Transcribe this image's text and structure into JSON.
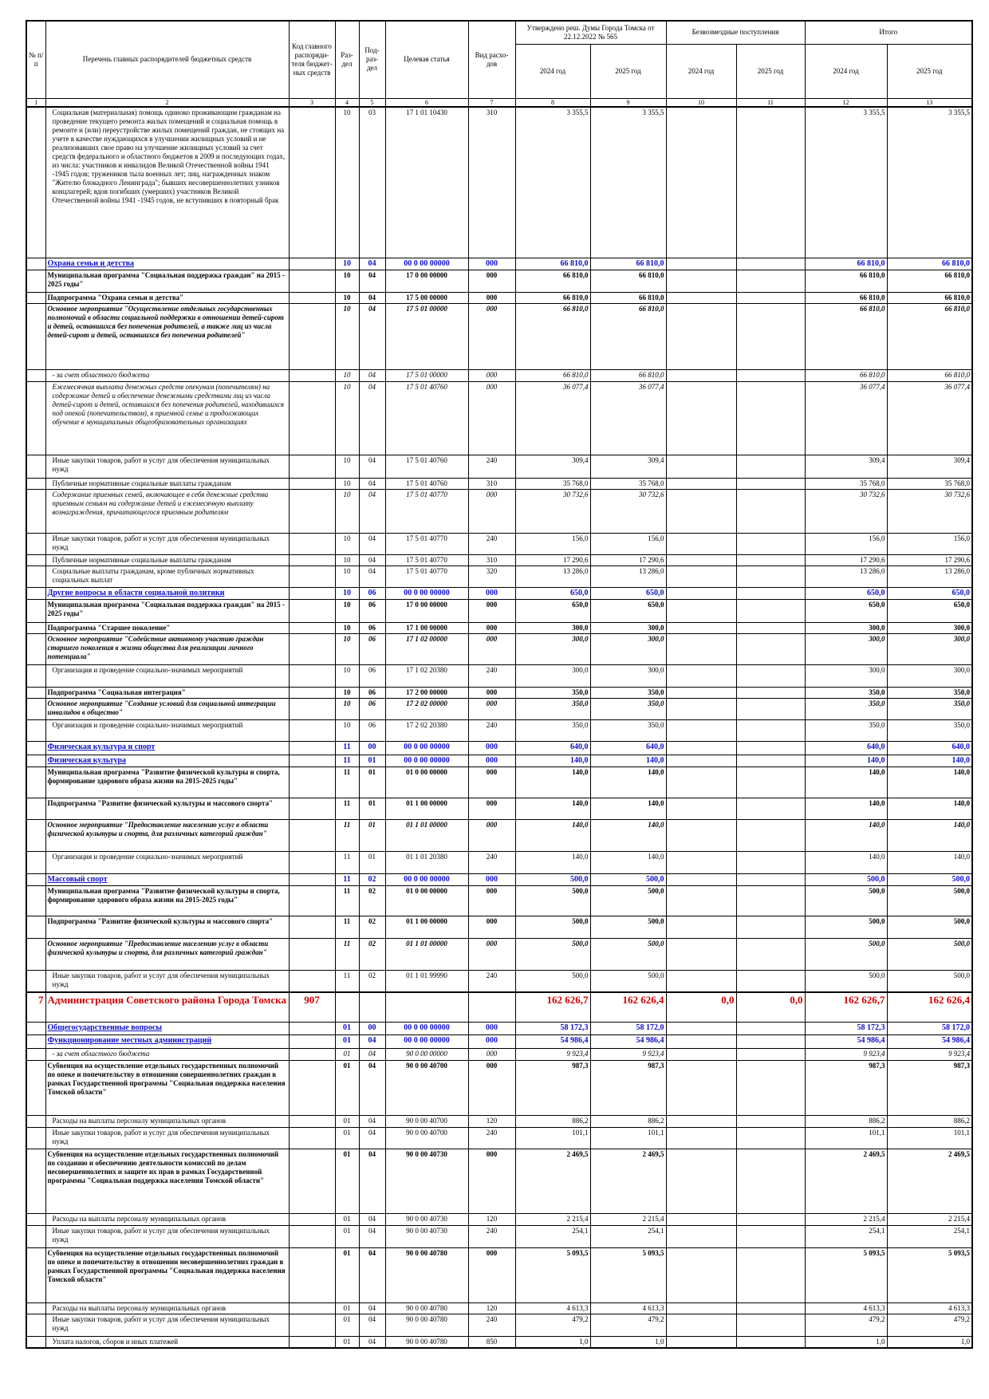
{
  "header": {
    "columns": [
      "№ п/п",
      "Перечень главных распорядителей бюджетных средств",
      "Код главного распоряди-теля бюджет-ных средств",
      "Раз-дел",
      "Под-раз-дел",
      "Целевая статья",
      "Вид расхо-дов"
    ],
    "groups": [
      "Утверждено реш. Думы Города Томска от 22.12.2022 № 565",
      "Безвозмездные поступления",
      "Итого"
    ],
    "years": [
      "2024 год",
      "2025 год",
      "2024 год",
      "2025 год",
      "2024 год",
      "2025 год"
    ],
    "column_numbers": [
      "1",
      "2",
      "3",
      "4",
      "5",
      "6",
      "7",
      "8",
      "9",
      "10",
      "11",
      "12",
      "13"
    ]
  },
  "table": {
    "rows": [
      [
        null,
        "Социальная (материальная) помощь одиноко проживающим гражданам на проведение текущего ремонта жилых помещений и социальная помощь в ремонте и (или) переустройстве жилых помещений граждан, не стоящих на учете в качестве нуждающихся в улучшении жилищных условий и не реализовавших свое право на улучшение жилищных условий за счет средств федерального и областного бюджетов в 2009 и последующих годах, из числа: участников и инвалидов Великой Отечественной войны 1941 -1945 годов; тружеников тыла военных лет; лиц, награжденных знаком \"Жителю блокадного Ленинграда\"; бывших несовершеннолетних узников концлагерей; вдов погибших (умерших) участников Великой Отечественной войны 1941 -1945 годов, не вступивших в повторный брак",
        null,
        "10",
        "03",
        "17 1 01 10430",
        "310",
        "3 355,5",
        "3 355,5",
        null,
        null,
        "3 355,5",
        "3 355,5"
      ],
      [
        null,
        "Охрана семьи и детства",
        null,
        "10",
        "04",
        "00 0 00 00000",
        "000",
        "66 810,0",
        "66 810,0",
        null,
        null,
        "66 810,0",
        "66 810,0"
      ],
      [
        null,
        "Муниципальная программа \"Социальная поддержка граждан\" на 2015 - 2025 годы\"",
        null,
        "10",
        "04",
        "17 0 00 00000",
        "000",
        "66 810,0",
        "66 810,0",
        null,
        null,
        "66 810,0",
        "66 810,0"
      ],
      [
        null,
        "Подпрограмма \"Охрана семьи и детства\"",
        null,
        "10",
        "04",
        "17 5 00 00000",
        "000",
        "66 810,0",
        "66 810,0",
        null,
        null,
        "66 810,0",
        "66 810,0"
      ],
      [
        null,
        "Основное мероприятие \"Осуществление отдельных государственных полномочий в области социальной поддержки в отношении детей-сирот и детей, оставшихся без попечения родителей, а также лиц из числа детей-сирот и детей, оставшихся без попечения родителей\"",
        null,
        "10",
        "04",
        "17 5 01 00000",
        "000",
        "66 810,0",
        "66 810,0",
        null,
        null,
        "66 810,0",
        "66 810,0"
      ],
      [
        null,
        "- за счет областного бюджета",
        null,
        "10",
        "04",
        "17 5 01 00000",
        "000",
        "66 810,0",
        "66 810,0",
        null,
        null,
        "66 810,0",
        "66 810,0"
      ],
      [
        null,
        "Ежемесячная выплата денежных средств опекунам (попечителям) на содержание детей и обеспечение денежными средствами лиц из числа детей-сирот и детей, оставшихся без попечения родителей, находившихся под опекой (попечительством), в приемной семье и продолжающих обучение в муниципальных общеобразовательных организациях",
        null,
        "10",
        "04",
        "17 5 01 40760",
        "000",
        "36 077,4",
        "36 077,4",
        null,
        null,
        "36 077,4",
        "36 077,4"
      ],
      [
        null,
        "Иные закупки товаров, работ и услуг для обеспечения муниципальных нужд",
        null,
        "10",
        "04",
        "17 5 01 40760",
        "240",
        "309,4",
        "309,4",
        null,
        null,
        "309,4",
        "309,4"
      ],
      [
        null,
        "Публичные нормативные социальные выплаты гражданам",
        null,
        "10",
        "04",
        "17 5 01 40760",
        "310",
        "35 768,0",
        "35 768,0",
        null,
        null,
        "35 768,0",
        "35 768,0"
      ],
      [
        null,
        "Содержание приемных семей, включающее в себя денежные средства приемным семьям на содержание детей и ежемесячную выплату вознаграждения, причитающегося приемным родителям",
        null,
        "10",
        "04",
        "17 5 01 40770",
        "000",
        "30 732,6",
        "30 732,6",
        null,
        null,
        "30 732,6",
        "30 732,6"
      ],
      [
        null,
        "Иные закупки товаров, работ и услуг для обеспечения муниципальных нужд",
        null,
        "10",
        "04",
        "17 5 01 40770",
        "240",
        "156,0",
        "156,0",
        null,
        null,
        "156,0",
        "156,0"
      ],
      [
        null,
        "Публичные нормативные социальные выплаты гражданам",
        null,
        "10",
        "04",
        "17 5 01 40770",
        "310",
        "17 290,6",
        "17 290,6",
        null,
        null,
        "17 290,6",
        "17 290,6"
      ],
      [
        null,
        "Социальные выплаты гражданам, кроме публичных нормативных социальных выплат",
        null,
        "10",
        "04",
        "17 5 01 40770",
        "320",
        "13 286,0",
        "13 286,0",
        null,
        null,
        "13 286,0",
        "13 286,0"
      ],
      [
        null,
        "Другие вопросы в области социальной политики",
        null,
        "10",
        "06",
        "00 0 00 00000",
        "000",
        "650,0",
        "650,0",
        null,
        null,
        "650,0",
        "650,0"
      ],
      [
        null,
        "Муниципальная программа \"Социальная поддержка граждан\" на 2015 - 2025 годы\"",
        null,
        "10",
        "06",
        "17 0 00 00000",
        "000",
        "650,0",
        "650,0",
        null,
        null,
        "650,0",
        "650,0"
      ],
      [
        null,
        "Подпрограмма \"Старшее поколение\"",
        null,
        "10",
        "06",
        "17 1 00 00000",
        "000",
        "300,0",
        "300,0",
        null,
        null,
        "300,0",
        "300,0"
      ],
      [
        null,
        "Основное мероприятие \"Содействие активному участию граждан старшего поколения в жизни общества для реализации личного потенциала\"",
        null,
        "10",
        "06",
        "17 1 02 00000",
        "000",
        "300,0",
        "300,0",
        null,
        null,
        "300,0",
        "300,0"
      ],
      [
        null,
        "Организация и проведение социально-значимых мероприятий",
        null,
        "10",
        "06",
        "17 1 02 20380",
        "240",
        "300,0",
        "300,0",
        null,
        null,
        "300,0",
        "300,0"
      ],
      [
        null,
        "Подпрограмма \"Социальная интеграция\"",
        null,
        "10",
        "06",
        "17 2 00 00000",
        "000",
        "350,0",
        "350,0",
        null,
        null,
        "350,0",
        "350,0"
      ],
      [
        null,
        "Основное мероприятие \"Создание условий для социальной интеграции инвалидов в общество\"",
        null,
        "10",
        "06",
        "17 2 02 00000",
        "000",
        "350,0",
        "350,0",
        null,
        null,
        "350,0",
        "350,0"
      ],
      [
        null,
        "Организация и проведение социально-значимых мероприятий",
        null,
        "10",
        "06",
        "17 2 02 20380",
        "240",
        "350,0",
        "350,0",
        null,
        null,
        "350,0",
        "350,0"
      ],
      [
        null,
        "Физическая культура и спорт",
        null,
        "11",
        "00",
        "00 0 00 00000",
        "000",
        "640,0",
        "640,0",
        null,
        null,
        "640,0",
        "640,0"
      ],
      [
        null,
        "Физическая культура",
        null,
        "11",
        "01",
        "00 0 00 00000",
        "000",
        "140,0",
        "140,0",
        null,
        null,
        "140,0",
        "140,0"
      ],
      [
        null,
        "Муниципальная программа \"Развитие физической культуры и спорта, формирование здорового образа жизни на 2015-2025 годы\"",
        null,
        "11",
        "01",
        "01 0 00 00000",
        "000",
        "140,0",
        "140,0",
        null,
        null,
        "140,0",
        "140,0"
      ],
      [
        null,
        "Подпрограмма \"Развитие физической культуры и массового спорта\"",
        null,
        "11",
        "01",
        "01 1 00 00000",
        "000",
        "140,0",
        "140,0",
        null,
        null,
        "140,0",
        "140,0"
      ],
      [
        null,
        "Основное мероприятие \"Предоставление населению услуг в области физической культуры и спорта, для различных категорий граждан\"",
        null,
        "11",
        "01",
        "01 1 01 00000",
        "000",
        "140,0",
        "140,0",
        null,
        null,
        "140,0",
        "140,0"
      ],
      [
        null,
        "Организация и проведение социально-значимых мероприятий",
        null,
        "11",
        "01",
        "01 1 01 20380",
        "240",
        "140,0",
        "140,0",
        null,
        null,
        "140,0",
        "140,0"
      ],
      [
        null,
        "Массовый спорт",
        null,
        "11",
        "02",
        "00 0 00 00000",
        "000",
        "500,0",
        "500,0",
        null,
        null,
        "500,0",
        "500,0"
      ],
      [
        null,
        "Муниципальная программа \"Развитие физической культуры и спорта, формирование здорового образа жизни на 2015-2025 годы\"",
        null,
        "11",
        "02",
        "01 0 00 00000",
        "000",
        "500,0",
        "500,0",
        null,
        null,
        "500,0",
        "500,0"
      ],
      [
        null,
        "Подпрограмма \"Развитие физической культуры и массового спорта\"",
        null,
        "11",
        "02",
        "01 1 00 00000",
        "000",
        "500,0",
        "500,0",
        null,
        null,
        "500,0",
        "500,0"
      ],
      [
        null,
        "Основное мероприятие \"Предоставление населению услуг в области физической культуры и спорта, для различных категорий граждан\"",
        null,
        "11",
        "02",
        "01 1 01 00000",
        "000",
        "500,0",
        "500,0",
        null,
        null,
        "500,0",
        "500,0"
      ],
      [
        null,
        "Иные закупки товаров, работ и услуг для обеспечения муниципальных нужд",
        null,
        "11",
        "02",
        "01 1 01 99990",
        "240",
        "500,0",
        "500,0",
        null,
        null,
        "500,0",
        "500,0"
      ],
      [
        "7",
        "Администрация Советского района Города Томска",
        "907",
        null,
        null,
        null,
        null,
        "162 626,7",
        "162 626,4",
        "0,0",
        "0,0",
        "162 626,7",
        "162 626,4"
      ],
      [
        null,
        "Общегосударственные вопросы",
        null,
        "01",
        "00",
        "00 0 00 00000",
        "000",
        "58 172,3",
        "58 172,0",
        null,
        null,
        "58 172,3",
        "58 172,0"
      ],
      [
        null,
        "Функционирование местных администраций",
        null,
        "01",
        "04",
        "00 0 00 00000",
        "000",
        "54 986,4",
        "54 986,4",
        null,
        null,
        "54 986,4",
        "54 986,4"
      ],
      [
        null,
        "- за счет областного бюджета",
        null,
        "01",
        "04",
        "90 0 00 00000",
        "000",
        "9 923,4",
        "9 923,4",
        null,
        null,
        "9 923,4",
        "9 923,4"
      ],
      [
        null,
        "Субвенция на осуществление отдельных государственных полномочий по опеке и попечительству в отношении совершеннолетних граждан в рамках Государственной программы \"Социальная поддержка населения Томской области\"",
        null,
        "01",
        "04",
        "90 0 00 40700",
        "000",
        "987,3",
        "987,3",
        null,
        null,
        "987,3",
        "987,3"
      ],
      [
        null,
        "Расходы на выплаты персоналу муниципальных органов",
        null,
        "01",
        "04",
        "90 0 00 40700",
        "120",
        "886,2",
        "886,2",
        null,
        null,
        "886,2",
        "886,2"
      ],
      [
        null,
        "Иные закупки товаров, работ и услуг для обеспечения муниципальных нужд",
        null,
        "01",
        "04",
        "90 0 00 40700",
        "240",
        "101,1",
        "101,1",
        null,
        null,
        "101,1",
        "101,1"
      ],
      [
        null,
        "Субвенция на осуществление отдельных государственных полномочий по созданию и обеспечению деятельности комиссий по делам несовершеннолетних и защите их прав в рамках Государственной программы \"Социальная поддержка населения Томской области\"",
        null,
        "01",
        "04",
        "90 0 00 40730",
        "000",
        "2 469,5",
        "2 469,5",
        null,
        null,
        "2 469,5",
        "2 469,5"
      ],
      [
        null,
        "Расходы на выплаты персоналу муниципальных органов",
        null,
        "01",
        "04",
        "90 0 00 40730",
        "120",
        "2 215,4",
        "2 215,4",
        null,
        null,
        "2 215,4",
        "2 215,4"
      ],
      [
        null,
        "Иные закупки товаров, работ и услуг для обеспечения муниципальных нужд",
        null,
        "01",
        "04",
        "90 0 00 40730",
        "240",
        "254,1",
        "254,1",
        null,
        null,
        "254,1",
        "254,1"
      ],
      [
        null,
        "Субвенция на осуществление отдельных государственных полномочий по опеке и попечительству в отношении несовершеннолетних граждан в рамках Государственной программы \"Социальная поддержка населения Томской области\"",
        null,
        "01",
        "04",
        "90 0 00 40780",
        "000",
        "5 093,5",
        "5 093,5",
        null,
        null,
        "5 093,5",
        "5 093,5"
      ],
      [
        null,
        "Расходы на выплаты персоналу муниципальных органов",
        null,
        "01",
        "04",
        "90 0 00 40780",
        "120",
        "4 613,3",
        "4 613,3",
        null,
        null,
        "4 613,3",
        "4 613,3"
      ],
      [
        null,
        "Иные закупки товаров, работ и услуг для обеспечения муниципальных нужд",
        null,
        "01",
        "04",
        "90 0 00 40780",
        "240",
        "479,2",
        "479,2",
        null,
        null,
        "479,2",
        "479,2"
      ],
      [
        null,
        "Уплата налогов, сборов и иных платежей",
        null,
        "01",
        "04",
        "90 0 00 40780",
        "850",
        "1,0",
        "1,0",
        null,
        null,
        "1,0",
        "1,0"
      ]
    ]
  }
}
